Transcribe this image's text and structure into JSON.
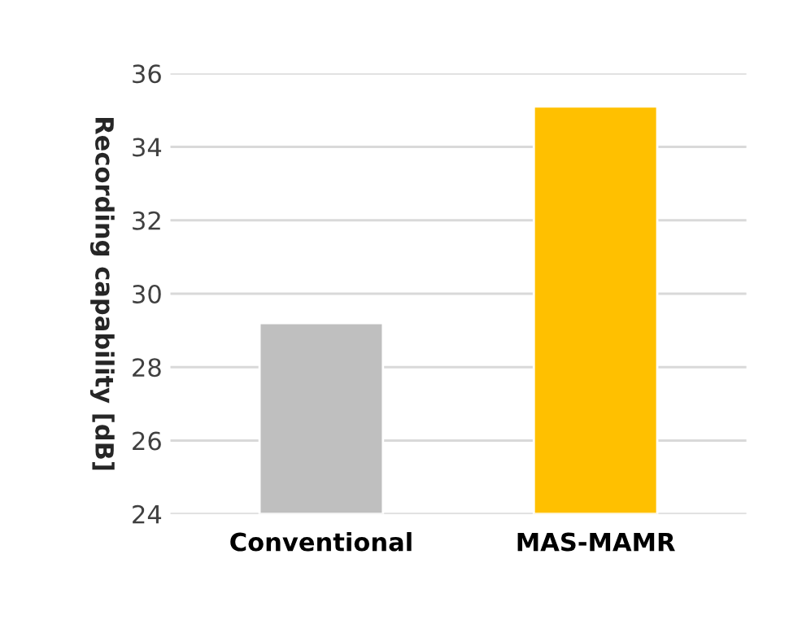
{
  "chart_data": {
    "type": "bar",
    "ylabel": "Recording capability [dB]",
    "categories": [
      "Conventional",
      "MAS-MAMR"
    ],
    "values": [
      29.2,
      35.1
    ],
    "colors": [
      "#bfbfbf",
      "#ffc000"
    ],
    "ylim": [
      24,
      36
    ],
    "yticks": [
      24,
      26,
      28,
      30,
      32,
      34,
      36
    ],
    "grid": "y",
    "legend": false
  }
}
